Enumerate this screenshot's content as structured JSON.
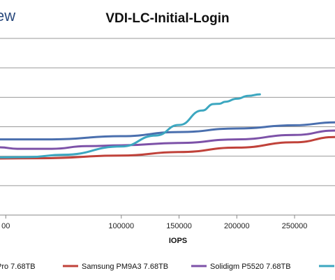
{
  "brand_fragment": "ew",
  "chart_data": {
    "type": "line",
    "title": "VDI-LC-Initial-Login",
    "xlabel": "IOPS",
    "ylabel": "",
    "xlim": [
      -5000,
      285000
    ],
    "ylim": [
      0,
      6
    ],
    "grid": true,
    "x_ticks": [
      0,
      100000,
      150000,
      200000,
      250000
    ],
    "x_tick_labels": [
      "00",
      "100000",
      "150000",
      "200000",
      "250000"
    ],
    "legend_position": "bottom",
    "series": [
      {
        "name": "Pro 7.68TB",
        "color": "#4a6fae",
        "points": [
          [
            -5000,
            2.57
          ],
          [
            40000,
            2.57
          ],
          [
            100000,
            2.68
          ],
          [
            150000,
            2.82
          ],
          [
            200000,
            2.94
          ],
          [
            250000,
            3.05
          ],
          [
            285000,
            3.15
          ]
        ]
      },
      {
        "name": "Samsung PM9A3 7.68TB",
        "color": "#c0423a",
        "points": [
          [
            -5000,
            1.92
          ],
          [
            30000,
            1.93
          ],
          [
            100000,
            2.02
          ],
          [
            150000,
            2.14
          ],
          [
            200000,
            2.29
          ],
          [
            250000,
            2.47
          ],
          [
            285000,
            2.65
          ]
        ]
      },
      {
        "name": "Solidigm P5520 7.68TB",
        "color": "#7d52a8",
        "points": [
          [
            -5000,
            2.3
          ],
          [
            10000,
            2.25
          ],
          [
            40000,
            2.25
          ],
          [
            70000,
            2.34
          ],
          [
            100000,
            2.37
          ],
          [
            150000,
            2.45
          ],
          [
            200000,
            2.57
          ],
          [
            250000,
            2.72
          ],
          [
            285000,
            2.87
          ]
        ]
      },
      {
        "name": "",
        "color": "#3ca7c0",
        "points": [
          [
            -5000,
            1.96
          ],
          [
            20000,
            1.97
          ],
          [
            50000,
            2.05
          ],
          [
            100000,
            2.33
          ],
          [
            130000,
            2.7
          ],
          [
            150000,
            3.06
          ],
          [
            170000,
            3.55
          ],
          [
            180000,
            3.77
          ],
          [
            185000,
            3.78
          ],
          [
            190000,
            3.85
          ],
          [
            200000,
            3.95
          ],
          [
            210000,
            4.05
          ],
          [
            220000,
            4.1
          ]
        ]
      }
    ]
  }
}
